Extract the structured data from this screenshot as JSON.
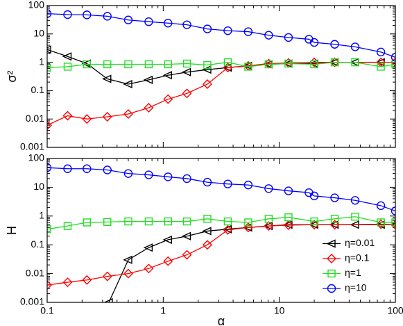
{
  "chart_data": [
    {
      "type": "line",
      "ylabel": "σ²",
      "xlim": [
        0.1,
        100
      ],
      "ylim": [
        0.001,
        100
      ],
      "xscale": "log",
      "yscale": "log",
      "yticks": [
        100,
        10,
        1,
        0.1,
        0.01,
        0.001
      ],
      "series": [
        {
          "name": "η=0.01",
          "color": "#000000",
          "marker": "triangle-left",
          "x": [
            0.1,
            0.15,
            0.22,
            0.33,
            0.5,
            0.75,
            1.1,
            1.6,
            2.4,
            3.6,
            5.4,
            8.1,
            12,
            20,
            30,
            45,
            75
          ],
          "values": [
            2.8,
            1.6,
            0.9,
            0.26,
            0.17,
            0.24,
            0.35,
            0.45,
            0.55,
            0.65,
            0.75,
            0.85,
            0.9,
            0.9,
            1.0,
            1.0,
            1.0
          ]
        },
        {
          "name": "η=0.1",
          "color": "#ff0000",
          "marker": "diamond",
          "x": [
            0.1,
            0.15,
            0.22,
            0.33,
            0.5,
            0.75,
            1.1,
            1.6,
            2.4,
            3.6,
            5.4,
            8.1,
            12,
            20,
            30,
            75,
            100
          ],
          "values": [
            0.006,
            0.013,
            0.01,
            0.012,
            0.015,
            0.025,
            0.05,
            0.08,
            0.17,
            0.65,
            0.75,
            0.9,
            0.95,
            1.0,
            1.0,
            1.0,
            1.0
          ]
        },
        {
          "name": "η=1",
          "color": "#22dd22",
          "marker": "square",
          "x": [
            0.1,
            0.15,
            0.22,
            0.33,
            0.5,
            0.75,
            1.1,
            1.6,
            2.4,
            3.6,
            5.4,
            8.1,
            12,
            20,
            30,
            45,
            75,
            100
          ],
          "values": [
            0.65,
            0.7,
            0.85,
            0.85,
            0.85,
            0.85,
            0.85,
            0.9,
            0.8,
            1.0,
            0.7,
            0.85,
            0.9,
            0.85,
            1.0,
            1.0,
            0.7,
            0.85
          ]
        },
        {
          "name": "η=10",
          "color": "#0000ff",
          "marker": "circle",
          "x": [
            0.1,
            0.15,
            0.22,
            0.33,
            0.5,
            0.75,
            1.1,
            1.6,
            2.4,
            3.6,
            5.4,
            8.1,
            12,
            18,
            20,
            30,
            45,
            75,
            100
          ],
          "values": [
            52,
            48,
            47,
            42,
            31,
            27,
            24,
            21,
            15,
            13,
            12,
            9,
            7.5,
            6.5,
            5,
            4.3,
            3.5,
            2.3,
            1.5
          ]
        }
      ]
    },
    {
      "type": "line",
      "ylabel": "H",
      "xlabel": "α",
      "xlim": [
        0.1,
        100
      ],
      "ylim": [
        0.001,
        100
      ],
      "xscale": "log",
      "yscale": "log",
      "xticks": [
        0.1,
        1,
        10,
        100
      ],
      "yticks": [
        100,
        10,
        1,
        0.1,
        0.01,
        0.001
      ],
      "legend": "lower right",
      "series": [
        {
          "name": "η=0.01",
          "color": "#000000",
          "marker": "triangle-left",
          "x": [
            0.34,
            0.5,
            0.75,
            1.1,
            1.6,
            2.4,
            3.6,
            5.4,
            8.1,
            12,
            20,
            30,
            45,
            75,
            100
          ],
          "values": [
            0.001,
            0.03,
            0.08,
            0.15,
            0.2,
            0.3,
            0.35,
            0.4,
            0.45,
            0.5,
            0.5,
            0.5,
            0.5,
            0.5,
            0.5
          ]
        },
        {
          "name": "η=0.1",
          "color": "#ff0000",
          "marker": "diamond",
          "x": [
            0.1,
            0.15,
            0.22,
            0.33,
            0.5,
            0.75,
            1.1,
            1.6,
            2.4,
            3.6,
            5.4,
            8.1,
            12,
            20,
            30,
            75,
            100
          ],
          "values": [
            0.004,
            0.005,
            0.006,
            0.008,
            0.01,
            0.015,
            0.027,
            0.045,
            0.1,
            0.33,
            0.4,
            0.45,
            0.48,
            0.5,
            0.5,
            0.52,
            0.5
          ]
        },
        {
          "name": "η=1",
          "color": "#22dd22",
          "marker": "square",
          "x": [
            0.1,
            0.15,
            0.22,
            0.33,
            0.5,
            0.75,
            1.1,
            1.6,
            2.4,
            3.6,
            5.4,
            8.1,
            12,
            20,
            30,
            45,
            75,
            100
          ],
          "values": [
            0.35,
            0.45,
            0.6,
            0.62,
            0.65,
            0.65,
            0.65,
            0.65,
            0.8,
            0.65,
            0.6,
            0.8,
            0.9,
            0.65,
            0.8,
            0.95,
            0.6,
            0.6
          ]
        },
        {
          "name": "η=10",
          "color": "#0000ff",
          "marker": "circle",
          "x": [
            0.1,
            0.15,
            0.22,
            0.33,
            0.5,
            0.75,
            1.1,
            1.6,
            2.4,
            3.6,
            5.4,
            8.1,
            12,
            18,
            20,
            30,
            45,
            75,
            100
          ],
          "values": [
            48,
            44,
            44,
            40,
            30,
            27,
            23,
            20,
            15,
            13,
            12,
            9,
            7.5,
            6.5,
            5,
            4.3,
            3.5,
            2.3,
            1.5
          ]
        }
      ]
    }
  ]
}
